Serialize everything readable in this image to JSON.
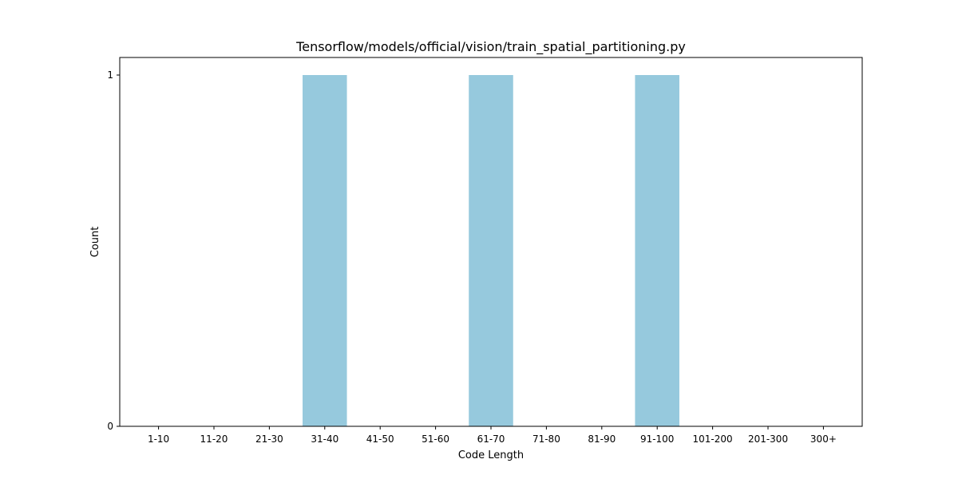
{
  "chart_data": {
    "type": "bar",
    "title": "Tensorflow/models/official/vision/train_spatial_partitioning.py",
    "xlabel": "Code Length",
    "ylabel": "Count",
    "categories": [
      "1-10",
      "11-20",
      "21-30",
      "31-40",
      "41-50",
      "51-60",
      "61-70",
      "71-80",
      "81-90",
      "91-100",
      "101-200",
      "201-300",
      "300+"
    ],
    "values": [
      0,
      0,
      0,
      1,
      0,
      0,
      1,
      0,
      0,
      1,
      0,
      0,
      0
    ],
    "ylim": [
      0,
      1
    ],
    "yticks": [
      0,
      1
    ],
    "grid": false,
    "bar_color": "#96c9dd"
  }
}
